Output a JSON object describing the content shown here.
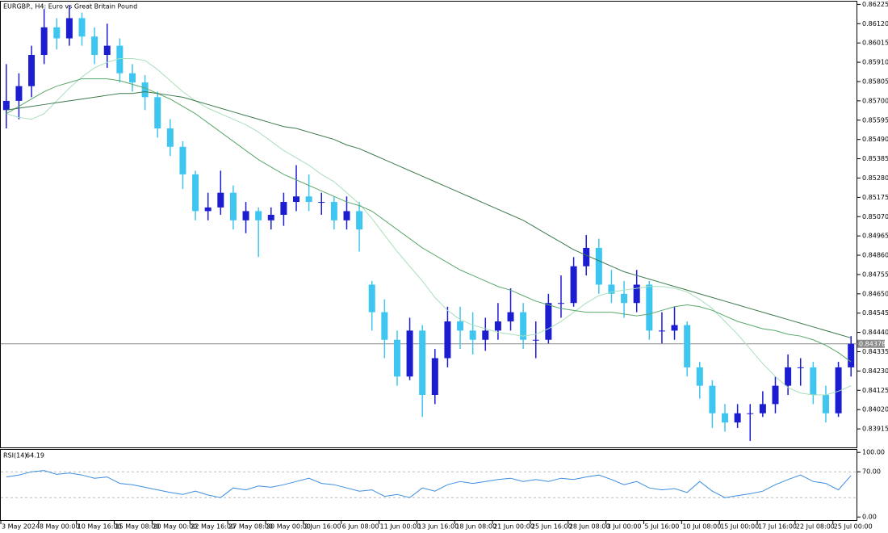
{
  "chart_data": {
    "type": "candlestick",
    "title": "EURGBP., H4:  Euro vs Great Britain Pound",
    "up_color": "#1c1cd0",
    "down_color": "#3ec6f0",
    "categories": [
      "3 May 2024",
      null,
      null,
      "8 May 00:00",
      null,
      null,
      "10 May 16:00",
      null,
      null,
      "15 May 08:00",
      null,
      null,
      "20 May 00:00",
      null,
      null,
      "22 May 16:00",
      null,
      null,
      "27 May 08:00",
      null,
      null,
      "30 May 00:00",
      null,
      null,
      "3 Jun 16:00",
      null,
      null,
      "6 Jun 08:00",
      null,
      null,
      "11 Jun 00:00",
      null,
      null,
      "13 Jun 16:00",
      null,
      null,
      "18 Jun 08:00",
      null,
      null,
      "21 Jun 00:00",
      null,
      null,
      "25 Jun 16:00",
      null,
      null,
      "28 Jun 08:00",
      null,
      null,
      "3 Jul 00:00",
      null,
      null,
      "5 Jul 16:00",
      null,
      null,
      "10 Jul 08:00",
      null,
      null,
      "15 Jul 00:00",
      null,
      null,
      "17 Jul 16:00",
      null,
      null,
      "22 Jul 08:00",
      null,
      null,
      "25 Jul 00:00",
      null
    ],
    "candles": [
      [
        0.8565,
        0.859,
        0.8555,
        0.857
      ],
      [
        0.857,
        0.8585,
        0.856,
        0.8578
      ],
      [
        0.8578,
        0.86,
        0.8572,
        0.8595
      ],
      [
        0.8595,
        0.862,
        0.859,
        0.861
      ],
      [
        0.861,
        0.8615,
        0.8598,
        0.8604
      ],
      [
        0.8604,
        0.8622,
        0.86,
        0.8615
      ],
      [
        0.8615,
        0.8618,
        0.86,
        0.8605
      ],
      [
        0.8605,
        0.861,
        0.859,
        0.8595
      ],
      [
        0.8595,
        0.8612,
        0.8588,
        0.86
      ],
      [
        0.86,
        0.8604,
        0.858,
        0.8585
      ],
      [
        0.8585,
        0.859,
        0.8575,
        0.858
      ],
      [
        0.858,
        0.8584,
        0.8565,
        0.8572
      ],
      [
        0.8572,
        0.8575,
        0.855,
        0.8555
      ],
      [
        0.8555,
        0.856,
        0.854,
        0.8545
      ],
      [
        0.8545,
        0.8548,
        0.8522,
        0.853
      ],
      [
        0.853,
        0.8532,
        0.8505,
        0.851
      ],
      [
        0.851,
        0.852,
        0.8505,
        0.8512
      ],
      [
        0.8512,
        0.8532,
        0.8508,
        0.852
      ],
      [
        0.852,
        0.8524,
        0.85,
        0.8505
      ],
      [
        0.8505,
        0.8515,
        0.8498,
        0.851
      ],
      [
        0.851,
        0.8512,
        0.8485,
        0.8505
      ],
      [
        0.8505,
        0.8512,
        0.85,
        0.8508
      ],
      [
        0.8508,
        0.852,
        0.8502,
        0.8515
      ],
      [
        0.8515,
        0.8535,
        0.851,
        0.8518
      ],
      [
        0.8518,
        0.853,
        0.851,
        0.8515
      ],
      [
        0.8515,
        0.852,
        0.8508,
        0.8515
      ],
      [
        0.8515,
        0.8518,
        0.85,
        0.8505
      ],
      [
        0.8505,
        0.8518,
        0.85,
        0.851
      ],
      [
        0.851,
        0.8515,
        0.8488,
        0.85
      ],
      [
        0.847,
        0.8472,
        0.8445,
        0.8455
      ],
      [
        0.8455,
        0.8462,
        0.843,
        0.844
      ],
      [
        0.844,
        0.8445,
        0.8415,
        0.842
      ],
      [
        0.842,
        0.8452,
        0.8418,
        0.8445
      ],
      [
        0.8445,
        0.8448,
        0.8398,
        0.841
      ],
      [
        0.841,
        0.8435,
        0.8405,
        0.843
      ],
      [
        0.843,
        0.8458,
        0.8425,
        0.845
      ],
      [
        0.845,
        0.8458,
        0.8435,
        0.8445
      ],
      [
        0.8445,
        0.8455,
        0.8432,
        0.844
      ],
      [
        0.844,
        0.8452,
        0.8434,
        0.8445
      ],
      [
        0.8445,
        0.846,
        0.844,
        0.845
      ],
      [
        0.845,
        0.8468,
        0.8445,
        0.8455
      ],
      [
        0.8455,
        0.846,
        0.8435,
        0.844
      ],
      [
        0.844,
        0.845,
        0.843,
        0.844
      ],
      [
        0.844,
        0.8465,
        0.8438,
        0.846
      ],
      [
        0.846,
        0.8475,
        0.8452,
        0.846
      ],
      [
        0.846,
        0.8485,
        0.8458,
        0.848
      ],
      [
        0.848,
        0.8497,
        0.8475,
        0.849
      ],
      [
        0.849,
        0.8495,
        0.8465,
        0.847
      ],
      [
        0.847,
        0.8478,
        0.846,
        0.8465
      ],
      [
        0.8465,
        0.8472,
        0.8452,
        0.846
      ],
      [
        0.846,
        0.8478,
        0.8455,
        0.847
      ],
      [
        0.847,
        0.8472,
        0.844,
        0.8445
      ],
      [
        0.8445,
        0.8455,
        0.8438,
        0.8445
      ],
      [
        0.8445,
        0.8458,
        0.844,
        0.8448
      ],
      [
        0.8448,
        0.845,
        0.842,
        0.8425
      ],
      [
        0.8425,
        0.8428,
        0.8408,
        0.8415
      ],
      [
        0.8415,
        0.8418,
        0.8392,
        0.84
      ],
      [
        0.84,
        0.8405,
        0.839,
        0.8395
      ],
      [
        0.8395,
        0.8405,
        0.8392,
        0.84
      ],
      [
        0.84,
        0.8405,
        0.8385,
        0.84
      ],
      [
        0.84,
        0.8412,
        0.8398,
        0.8405
      ],
      [
        0.8405,
        0.842,
        0.84,
        0.8415
      ],
      [
        0.8415,
        0.8432,
        0.841,
        0.8425
      ],
      [
        0.8425,
        0.843,
        0.8415,
        0.8425
      ],
      [
        0.8425,
        0.8428,
        0.8405,
        0.841
      ],
      [
        0.841,
        0.8415,
        0.8395,
        0.84
      ],
      [
        0.84,
        0.8428,
        0.8398,
        0.8425
      ],
      [
        0.8425,
        0.8442,
        0.842,
        0.84378
      ]
    ],
    "moving_averages": [
      {
        "color": "#a8dfbb",
        "values": [
          0.8563,
          0.8561,
          0.856,
          0.8563,
          0.857,
          0.8577,
          0.8583,
          0.8588,
          0.8591,
          0.8593,
          0.8593,
          0.8592,
          0.8587,
          0.8581,
          0.8575,
          0.857,
          0.8566,
          0.8563,
          0.856,
          0.8557,
          0.8553,
          0.8548,
          0.8543,
          0.8539,
          0.8535,
          0.853,
          0.8526,
          0.852,
          0.8514,
          0.8506,
          0.8497,
          0.8488,
          0.848,
          0.8472,
          0.8463,
          0.8456,
          0.8451,
          0.8448,
          0.8446,
          0.8444,
          0.8443,
          0.8442,
          0.8443,
          0.8446,
          0.845,
          0.8455,
          0.846,
          0.8464,
          0.8466,
          0.8467,
          0.8468,
          0.8469,
          0.8469,
          0.8468,
          0.8466,
          0.8462,
          0.8457,
          0.845,
          0.8443,
          0.8435,
          0.8427,
          0.842,
          0.8414,
          0.8411,
          0.841,
          0.841,
          0.8412,
          0.8415
        ]
      },
      {
        "color": "#5aa86c",
        "values": [
          0.8563,
          0.8567,
          0.8571,
          0.8575,
          0.8578,
          0.858,
          0.8582,
          0.8582,
          0.8582,
          0.8581,
          0.8579,
          0.8577,
          0.8574,
          0.8571,
          0.8567,
          0.8563,
          0.8558,
          0.8553,
          0.8548,
          0.8543,
          0.8538,
          0.8534,
          0.853,
          0.8527,
          0.8524,
          0.8521,
          0.8518,
          0.8515,
          0.8513,
          0.851,
          0.8505,
          0.85,
          0.8495,
          0.849,
          0.8486,
          0.8482,
          0.8478,
          0.8475,
          0.8472,
          0.8469,
          0.8467,
          0.8464,
          0.8461,
          0.8459,
          0.8457,
          0.8456,
          0.8455,
          0.8455,
          0.8455,
          0.8454,
          0.8453,
          0.8454,
          0.8456,
          0.8458,
          0.8459,
          0.8458,
          0.8456,
          0.8453,
          0.845,
          0.8448,
          0.8446,
          0.8445,
          0.8443,
          0.8442,
          0.844,
          0.8437,
          0.8433,
          0.8428
        ]
      },
      {
        "color": "#3b7a4c",
        "values": [
          0.8565,
          0.8566,
          0.8567,
          0.8568,
          0.8569,
          0.857,
          0.8571,
          0.8572,
          0.8573,
          0.8574,
          0.8574,
          0.8575,
          0.8574,
          0.8573,
          0.8572,
          0.857,
          0.8568,
          0.8566,
          0.8564,
          0.8562,
          0.856,
          0.8558,
          0.8556,
          0.8555,
          0.8553,
          0.8551,
          0.8549,
          0.8546,
          0.8544,
          0.8541,
          0.8538,
          0.8535,
          0.8532,
          0.8529,
          0.8526,
          0.8523,
          0.852,
          0.8517,
          0.8514,
          0.8511,
          0.8508,
          0.8505,
          0.8501,
          0.8497,
          0.8493,
          0.8489,
          0.8486,
          0.8483,
          0.848,
          0.8477,
          0.8475,
          0.8473,
          0.8471,
          0.8469,
          0.8467,
          0.8465,
          0.8463,
          0.8461,
          0.8459,
          0.8457,
          0.8455,
          0.8453,
          0.8451,
          0.8449,
          0.8447,
          0.8445,
          0.8443,
          0.8441
        ]
      }
    ],
    "current_price": 0.84378,
    "ylim": [
      0.8381,
      0.8624
    ],
    "yticks": [
      0.86225,
      {
        "value": 0.8612,
        "label": "0.86120"
      },
      0.86015,
      {
        "value": 0.8591,
        "label": "0.85910"
      },
      0.85805,
      {
        "value": 0.857,
        "label": "0.85700"
      },
      0.85595,
      {
        "value": 0.8549,
        "label": "0.85490"
      },
      0.85385,
      {
        "value": 0.8528,
        "label": "0.85280"
      },
      0.85175,
      {
        "value": 0.8507,
        "label": "0.85070"
      },
      0.84965,
      {
        "value": 0.8486,
        "label": "0.84860"
      },
      0.84755,
      {
        "value": 0.8465,
        "label": "0.84650"
      },
      0.84545,
      {
        "value": 0.8444,
        "label": "0.84440"
      },
      0.84335,
      {
        "value": 0.8423,
        "label": "0.84230"
      },
      0.84125,
      {
        "value": 0.8402,
        "label": "0.84020"
      },
      0.83915
    ],
    "rsi": {
      "name": "RSI(14)",
      "color": "#3d8ee0",
      "values": [
        62,
        65,
        70,
        72,
        66,
        68,
        65,
        60,
        62,
        52,
        50,
        46,
        42,
        38,
        35,
        40,
        34,
        30,
        45,
        42,
        48,
        46,
        50,
        55,
        60,
        52,
        50,
        45,
        40,
        42,
        32,
        35,
        30,
        45,
        40,
        50,
        55,
        52,
        55,
        58,
        60,
        55,
        58,
        55,
        60,
        58,
        62,
        65,
        58,
        50,
        55,
        45,
        42,
        44,
        38,
        55,
        40,
        30,
        33,
        36,
        40,
        50,
        58,
        65,
        55,
        52,
        42,
        64.19
      ],
      "ylim": [
        -6,
        104
      ],
      "yticks": [
        {
          "value": 100,
          "label": "100.00"
        },
        {
          "value": 70,
          "label": "70.00"
        },
        {
          "value": 0,
          "label": "0.00"
        }
      ],
      "levels": [
        70,
        30
      ]
    }
  }
}
